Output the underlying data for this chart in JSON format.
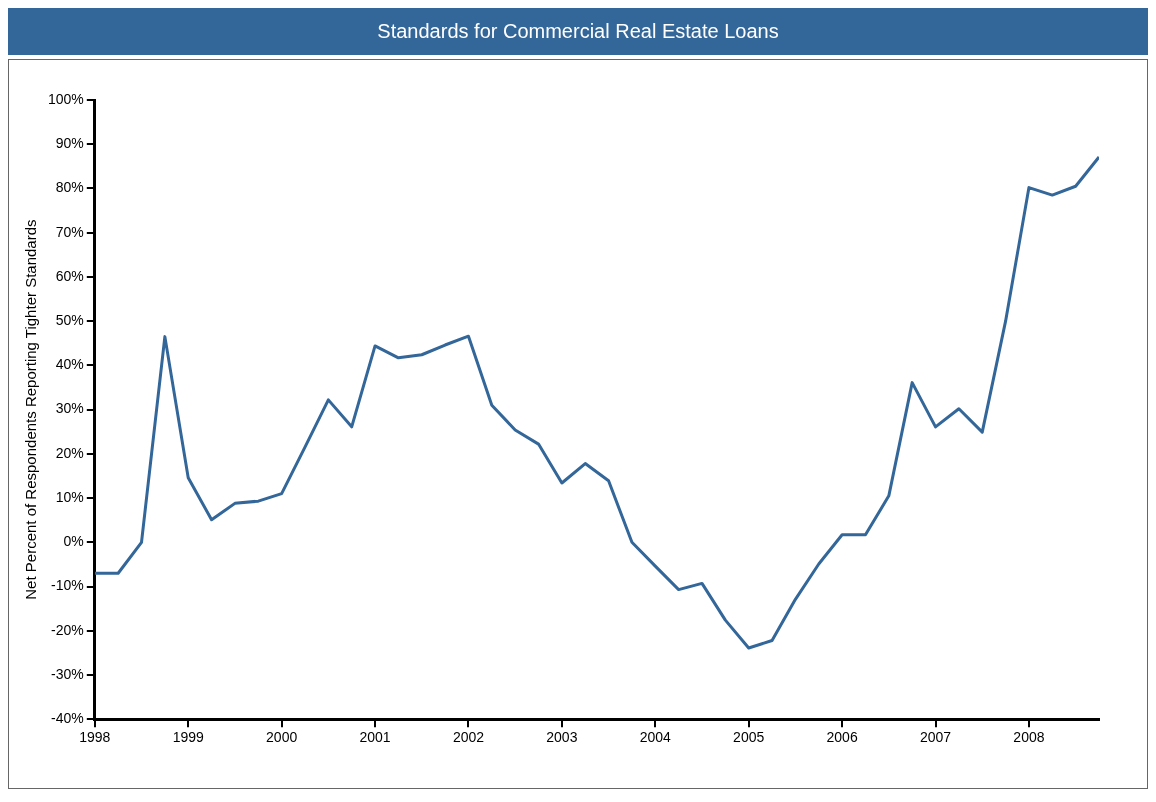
{
  "chart_data": {
    "type": "line",
    "title": "Standards for Commercial Real Estate Loans",
    "ylabel": "Net Percent of Respondents Reporting Tighter Standards",
    "x": [
      1998,
      1998.25,
      1998.5,
      1998.75,
      1999,
      1999.25,
      1999.5,
      1999.75,
      2000,
      2000.25,
      2000.5,
      2000.75,
      2001,
      2001.25,
      2001.5,
      2001.75,
      2002,
      2002.25,
      2002.5,
      2002.75,
      2003,
      2003.25,
      2003.5,
      2003.75,
      2004,
      2004.25,
      2004.5,
      2004.75,
      2005,
      2005.25,
      2005.5,
      2005.75,
      2006,
      2006.25,
      2006.5,
      2006.75,
      2007,
      2007.25,
      2007.5,
      2007.75,
      2008,
      2008.25,
      2008.5,
      2008.75
    ],
    "series": [
      {
        "color": "#336699",
        "values": [
          -7,
          -7,
          0,
          46.5,
          14.6,
          5.1,
          8.8,
          9.3,
          11,
          21.5,
          32.2,
          26.1,
          44.4,
          41.7,
          42.4,
          44.6,
          46.6,
          31,
          25.4,
          22.2,
          13.4,
          17.8,
          13.9,
          0,
          -5.4,
          -10.7,
          -9.3,
          -17.6,
          -23.9,
          -22.2,
          -12.9,
          -4.9,
          1.7,
          1.7,
          10.5,
          36.1,
          26.1,
          30.2,
          24.9,
          50,
          80.2,
          78.5,
          80.5,
          87.1
        ]
      }
    ],
    "xlim": [
      1998,
      2008.75
    ],
    "xticks": [
      1998,
      1999,
      2000,
      2001,
      2002,
      2003,
      2004,
      2005,
      2006,
      2007,
      2008
    ],
    "ylim": [
      -40,
      100
    ],
    "yticks": [
      {
        "value": -40,
        "label": "-40%"
      },
      {
        "value": -30,
        "label": "-30%"
      },
      {
        "value": -20,
        "label": "-20%"
      },
      {
        "value": -10,
        "label": "-10%"
      },
      {
        "value": 0,
        "label": "0%"
      },
      {
        "value": 10,
        "label": "10%"
      },
      {
        "value": 20,
        "label": "20%"
      },
      {
        "value": 30,
        "label": "30%"
      },
      {
        "value": 40,
        "label": "40%"
      },
      {
        "value": 50,
        "label": "50%"
      },
      {
        "value": 60,
        "label": "60%"
      },
      {
        "value": 70,
        "label": "70%"
      },
      {
        "value": 80,
        "label": "80%"
      },
      {
        "value": 90,
        "label": "90%"
      },
      {
        "value": 100,
        "label": "100%"
      }
    ],
    "grid": false,
    "legend": false,
    "marker": "none",
    "line_style": "solid"
  }
}
